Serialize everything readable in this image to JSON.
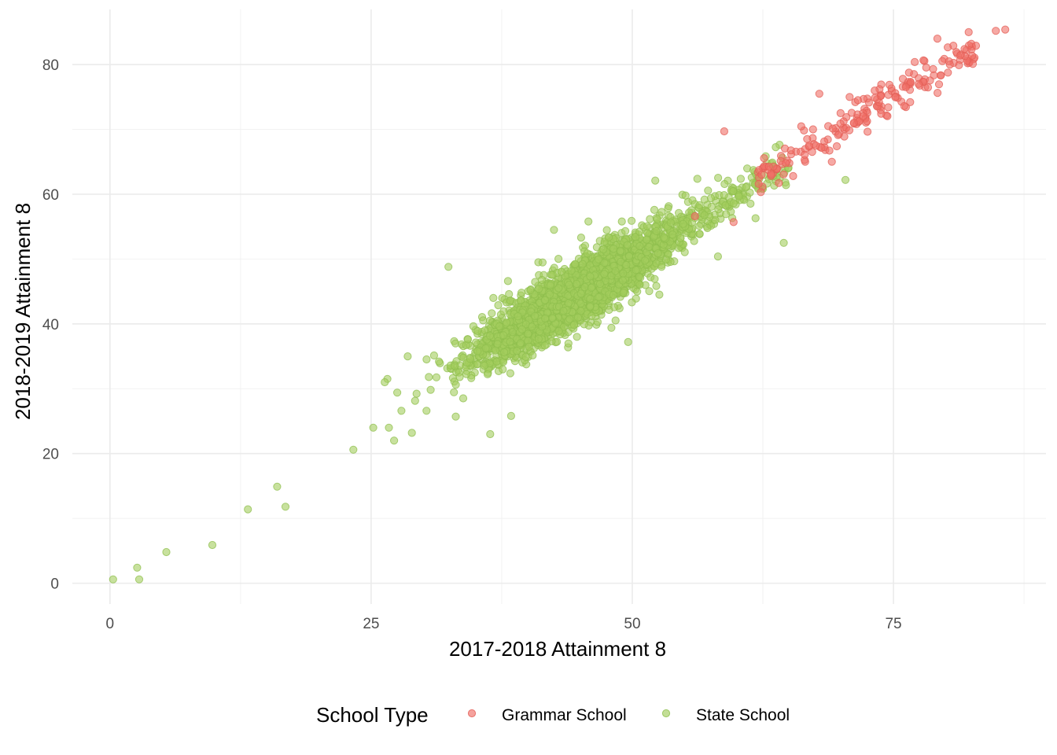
{
  "chart_data": {
    "type": "scatter",
    "title": "",
    "xlabel": "2017-2018 Attainment 8",
    "ylabel": "2018-2019 Attainment 8",
    "xlim": [
      -3.6,
      89.6
    ],
    "ylim": [
      -3.2,
      88.5
    ],
    "x_ticks": [
      0,
      25,
      50,
      75
    ],
    "x_tick_labels": [
      "0",
      "25",
      "50",
      "75"
    ],
    "y_ticks": [
      0,
      20,
      40,
      60,
      80
    ],
    "y_tick_labels": [
      "0",
      "20",
      "40",
      "60",
      "80"
    ],
    "grid": true,
    "legend": {
      "title": "School Type",
      "position": "bottom",
      "entries": [
        "Grammar School",
        "State School"
      ]
    },
    "series": [
      {
        "name": "State School",
        "color": "#a3cd5e",
        "points_listed": [
          [
            0.3,
            0.6
          ],
          [
            2.6,
            2.4
          ],
          [
            2.8,
            0.6
          ],
          [
            5.4,
            4.8
          ],
          [
            9.8,
            5.9
          ],
          [
            13.2,
            11.4
          ],
          [
            16.0,
            14.9
          ],
          [
            16.8,
            11.8
          ],
          [
            23.3,
            20.6
          ],
          [
            25.2,
            24.0
          ],
          [
            26.7,
            24.0
          ],
          [
            26.3,
            31.0
          ],
          [
            27.2,
            22.0
          ],
          [
            27.5,
            29.4
          ],
          [
            28.9,
            23.2
          ],
          [
            27.9,
            26.6
          ],
          [
            28.5,
            35.0
          ],
          [
            30.3,
            26.6
          ],
          [
            31.5,
            34.2
          ],
          [
            32.4,
            48.8
          ],
          [
            33.1,
            25.7
          ],
          [
            36.4,
            23.0
          ],
          [
            38.4,
            25.8
          ],
          [
            37.6,
            33.0
          ],
          [
            39.8,
            34.9
          ],
          [
            44.7,
            38.0
          ],
          [
            48.0,
            39.4
          ],
          [
            49.6,
            37.2
          ],
          [
            52.8,
            48.8
          ],
          [
            58.2,
            50.4
          ],
          [
            64.5,
            52.5
          ],
          [
            70.4,
            62.2
          ],
          [
            61.8,
            56.3
          ],
          [
            59.7,
            58.6
          ],
          [
            55.1,
            59.8
          ],
          [
            52.2,
            62.1
          ],
          [
            49.0,
            55.8
          ],
          [
            45.8,
            55.8
          ],
          [
            42.5,
            54.5
          ],
          [
            38.1,
            46.6
          ],
          [
            36.7,
            44.0
          ]
        ],
        "cloud": {
          "center_x": 44.5,
          "center_y": 44.5,
          "slope": 0.96,
          "count": 3100
        }
      },
      {
        "name": "Grammar School",
        "color": "#f07068",
        "points_listed": [
          [
            58.8,
            69.7
          ],
          [
            59.7,
            55.7
          ],
          [
            63.3,
            63.0
          ],
          [
            64.7,
            64.8
          ],
          [
            66.5,
            66.1
          ],
          [
            67.3,
            70.0
          ],
          [
            67.9,
            75.5
          ],
          [
            69.1,
            65.0
          ],
          [
            70.3,
            68.9
          ],
          [
            71.6,
            74.5
          ],
          [
            73.2,
            76.0
          ],
          [
            74.5,
            73.4
          ],
          [
            75.9,
            77.8
          ],
          [
            77.4,
            77.0
          ],
          [
            78.8,
            79.3
          ],
          [
            80.4,
            80.0
          ],
          [
            81.4,
            81.4
          ],
          [
            82.6,
            80.1
          ],
          [
            81.8,
            82.4
          ],
          [
            82.2,
            85.0
          ],
          [
            84.8,
            85.2
          ],
          [
            85.7,
            85.4
          ],
          [
            79.2,
            84.0
          ],
          [
            76.6,
            74.2
          ],
          [
            72.1,
            72.0
          ],
          [
            70.8,
            75.0
          ],
          [
            65.4,
            62.8
          ],
          [
            62.1,
            61.6
          ],
          [
            56.0,
            56.6
          ]
        ],
        "cloud": {
          "x_range": [
            62,
            83
          ],
          "slope": 0.98,
          "count": 170
        }
      }
    ]
  }
}
